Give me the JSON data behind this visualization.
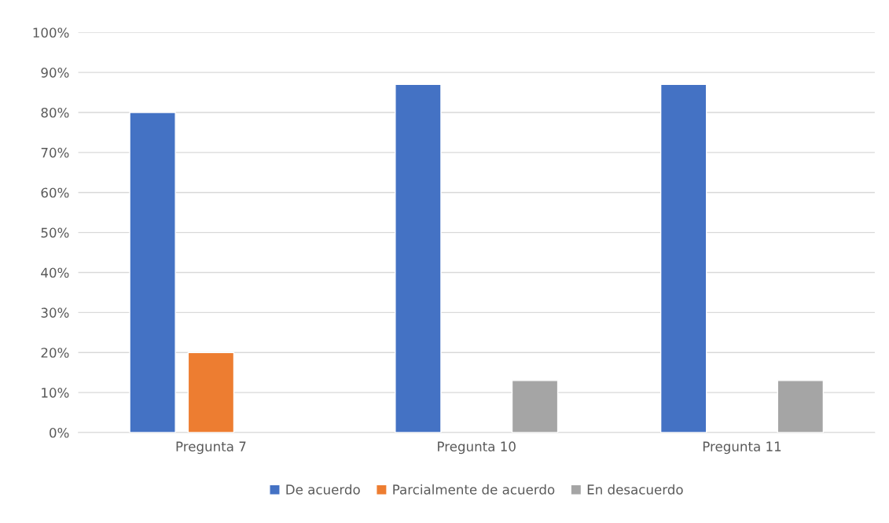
{
  "chart_data": {
    "type": "bar",
    "categories": [
      "Pregunta 7",
      "Pregunta 10",
      "Pregunta 11"
    ],
    "series": [
      {
        "name": "De acuerdo",
        "color": "#4472c4",
        "values": [
          80,
          87,
          87
        ]
      },
      {
        "name": "Parcialmente de acuerdo",
        "color": "#ed7d31",
        "values": [
          20,
          null,
          null
        ]
      },
      {
        "name": "En desacuerdo",
        "color": "#a5a5a5",
        "values": [
          null,
          13,
          13
        ]
      }
    ],
    "ylim": [
      0,
      100
    ],
    "yticks": [
      {
        "value": 0,
        "label": "0%"
      },
      {
        "value": 10,
        "label": "10%"
      },
      {
        "value": 20,
        "label": "20%"
      },
      {
        "value": 30,
        "label": "30%"
      },
      {
        "value": 40,
        "label": "40%"
      },
      {
        "value": 50,
        "label": "50%"
      },
      {
        "value": 60,
        "label": "60%"
      },
      {
        "value": 70,
        "label": "70%"
      },
      {
        "value": 80,
        "label": "80%"
      },
      {
        "value": 90,
        "label": "90%"
      },
      {
        "value": 100,
        "label": "100%"
      }
    ],
    "grid": "y",
    "legend": "bottom"
  }
}
